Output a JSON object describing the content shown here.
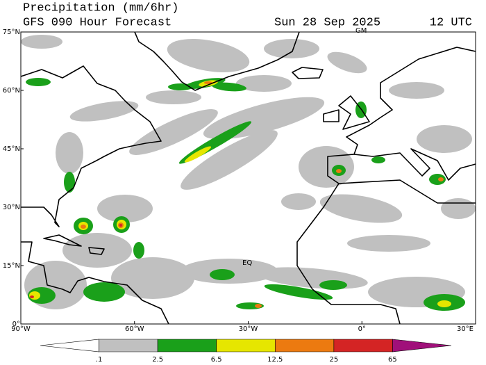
{
  "header": {
    "title": "Precipitation (mm/6hr)",
    "subtitle": "GFS 090 Hour Forecast",
    "date": "Sun 28 Sep 2025",
    "time": "12 UTC"
  },
  "map": {
    "lat_labels": [
      "75°N",
      "60°N",
      "45°N",
      "30°N",
      "15°N",
      "0°"
    ],
    "lon_labels": [
      "90°W",
      "60°W",
      "30°W",
      "0°",
      "30°E"
    ],
    "markers": [
      "GM",
      "EQ"
    ]
  },
  "legend": {
    "labels": [
      ".1",
      "2.5",
      "6.5",
      "12.5",
      "25",
      "65"
    ],
    "colors": [
      "#ffffff",
      "#c0c0c0",
      "#1aa01a",
      "#e6e600",
      "#ec7a10",
      "#d42424",
      "#a0107a"
    ]
  }
}
